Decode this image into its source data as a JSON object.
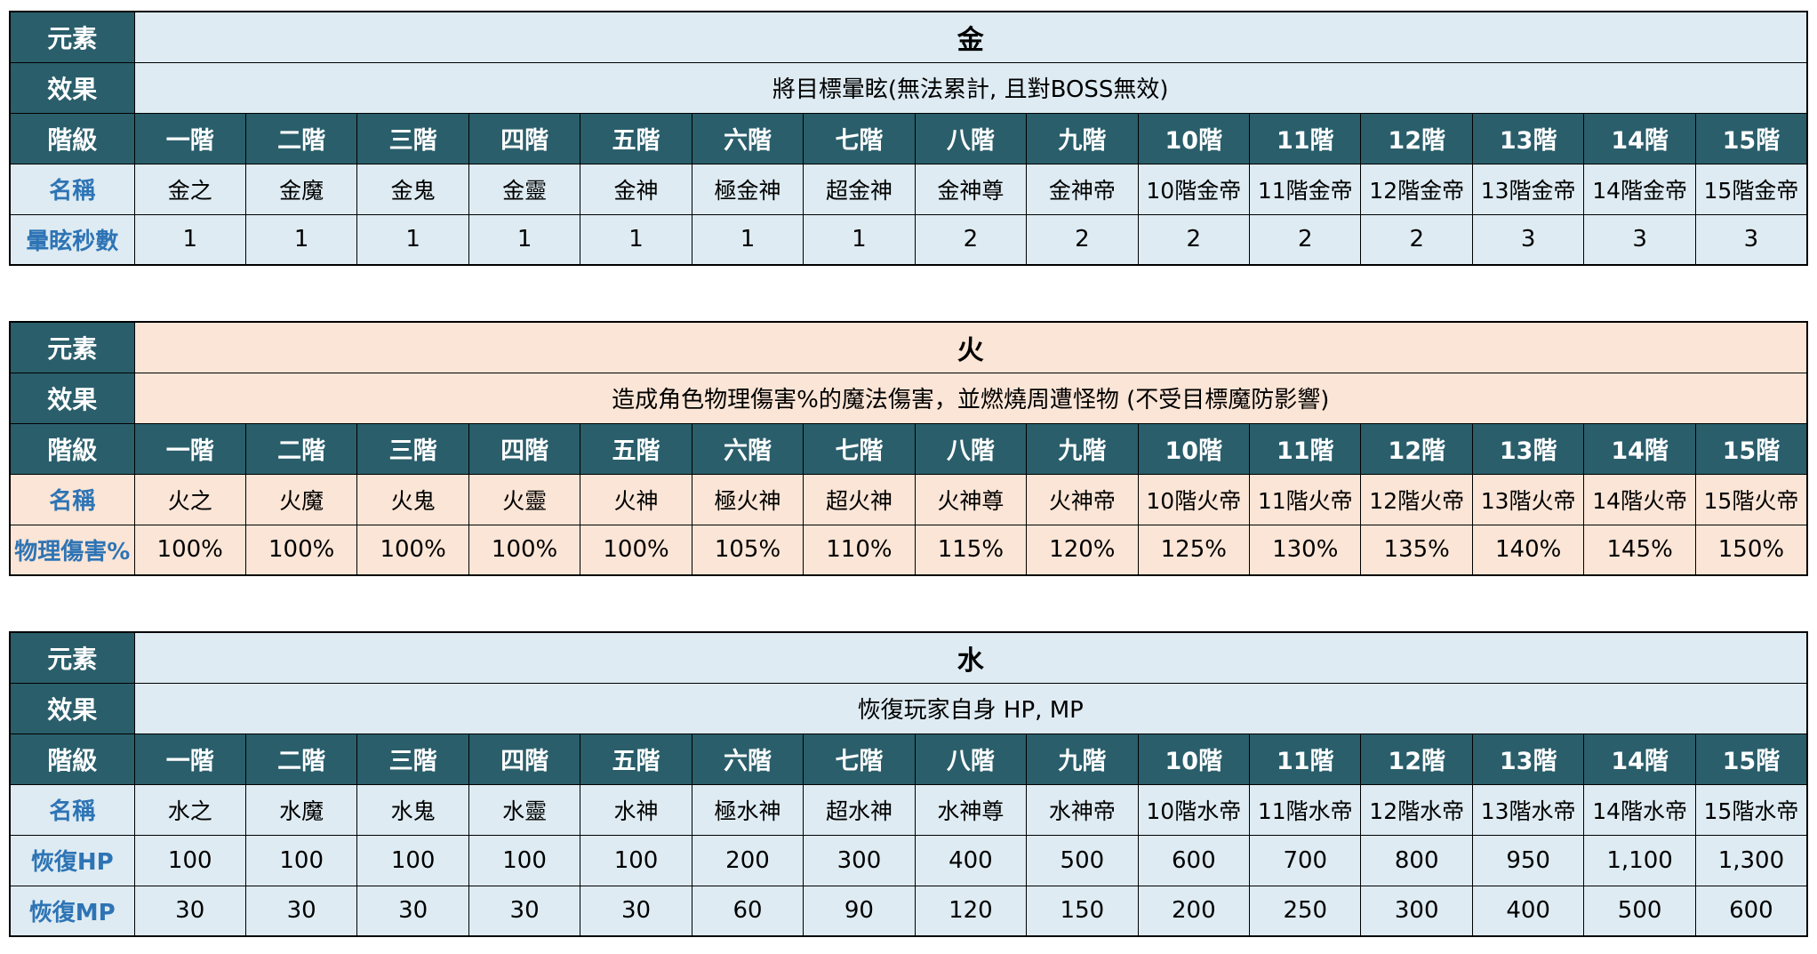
{
  "page": {
    "background": "#FFFFFF"
  },
  "colors": {
    "header_teal": "#2A5E6B",
    "row_label_blue": "#2E74B5",
    "border_black": "#000000",
    "header_text_white": "#FFFFFF",
    "light_blue_band": "#DEEBF2",
    "peach_band": "#FBE5D6"
  },
  "labels": {
    "element": "元素",
    "effect": "效果",
    "tier": "階級"
  },
  "tiers": [
    "一階",
    "二階",
    "三階",
    "四階",
    "五階",
    "六階",
    "七階",
    "八階",
    "九階",
    "10階",
    "11階",
    "12階",
    "13階",
    "14階",
    "15階"
  ],
  "tables": [
    {
      "key": "gold",
      "element": "金",
      "effect": "將目標暈眩(無法累計, 且對BOSS無效)",
      "band": "#DEEBF2",
      "rows": [
        {
          "label": "名稱",
          "values": [
            "金之",
            "金魔",
            "金鬼",
            "金靈",
            "金神",
            "極金神",
            "超金神",
            "金神尊",
            "金神帝",
            "10階金帝",
            "11階金帝",
            "12階金帝",
            "13階金帝",
            "14階金帝",
            "15階金帝"
          ]
        },
        {
          "label": "暈眩秒數",
          "values": [
            "1",
            "1",
            "1",
            "1",
            "1",
            "1",
            "1",
            "2",
            "2",
            "2",
            "2",
            "2",
            "3",
            "3",
            "3"
          ]
        }
      ]
    },
    {
      "key": "fire",
      "element": "火",
      "effect": "造成角色物理傷害%的魔法傷害，並燃燒周遭怪物 (不受目標魔防影響)",
      "band": "#FBE5D6",
      "rows": [
        {
          "label": "名稱",
          "values": [
            "火之",
            "火魔",
            "火鬼",
            "火靈",
            "火神",
            "極火神",
            "超火神",
            "火神尊",
            "火神帝",
            "10階火帝",
            "11階火帝",
            "12階火帝",
            "13階火帝",
            "14階火帝",
            "15階火帝"
          ]
        },
        {
          "label": "物理傷害%",
          "values": [
            "100%",
            "100%",
            "100%",
            "100%",
            "100%",
            "105%",
            "110%",
            "115%",
            "120%",
            "125%",
            "130%",
            "135%",
            "140%",
            "145%",
            "150%"
          ]
        }
      ]
    },
    {
      "key": "water",
      "element": "水",
      "effect": "恢復玩家自身 HP, MP",
      "band": "#DEEBF2",
      "rows": [
        {
          "label": "名稱",
          "values": [
            "水之",
            "水魔",
            "水鬼",
            "水靈",
            "水神",
            "極水神",
            "超水神",
            "水神尊",
            "水神帝",
            "10階水帝",
            "11階水帝",
            "12階水帝",
            "13階水帝",
            "14階水帝",
            "15階水帝"
          ]
        },
        {
          "label": "恢復HP",
          "values": [
            "100",
            "100",
            "100",
            "100",
            "100",
            "200",
            "300",
            "400",
            "500",
            "600",
            "700",
            "800",
            "950",
            "1,100",
            "1,300"
          ]
        },
        {
          "label": "恢復MP",
          "values": [
            "30",
            "30",
            "30",
            "30",
            "30",
            "60",
            "90",
            "120",
            "150",
            "200",
            "250",
            "300",
            "400",
            "500",
            "600"
          ]
        }
      ]
    }
  ]
}
